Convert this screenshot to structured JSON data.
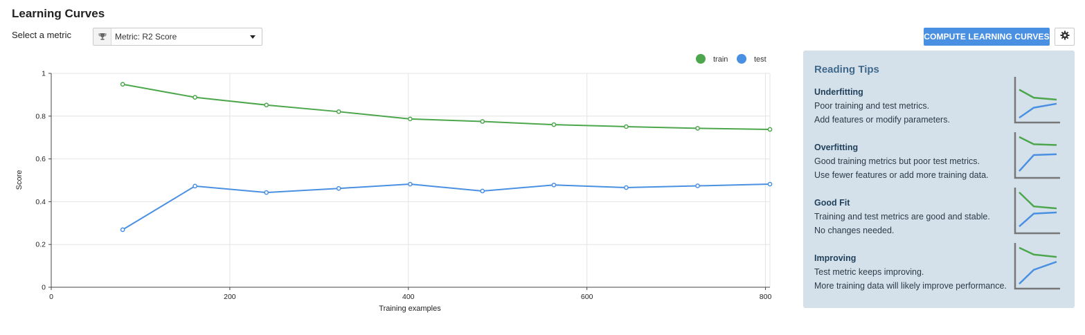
{
  "header": {
    "title": "Learning Curves",
    "metric_label": "Select a metric",
    "metric_value": "Metric: R2 Score",
    "compute_label": "COMPUTE LEARNING CURVES"
  },
  "colors": {
    "train": "#4ca64c",
    "test": "#4a90e2",
    "accent": "#4a90e2",
    "tips_bg": "#d5e1ea"
  },
  "icons": {
    "metric": "trophy-icon",
    "select": "chevron-down-icon",
    "settings": "gear-icon"
  },
  "chart_data": {
    "type": "line",
    "title": "",
    "xlabel": "Training examples",
    "ylabel": "Score",
    "xlim": [
      0,
      805
    ],
    "ylim": [
      0,
      1
    ],
    "xticks": [
      0,
      200,
      400,
      600,
      800
    ],
    "yticks": [
      0,
      0.2,
      0.4,
      0.6,
      0.8,
      1
    ],
    "ytick_labels": [
      "0",
      "0.2",
      "0.4",
      "0.6",
      "0.8",
      "1"
    ],
    "grid": true,
    "legend": "top-right",
    "x": [
      80,
      161,
      241,
      322,
      402,
      483,
      563,
      644,
      724,
      805
    ],
    "series": [
      {
        "name": "train",
        "color": "#4ca64c",
        "values": [
          0.949,
          0.888,
          0.852,
          0.821,
          0.787,
          0.775,
          0.76,
          0.751,
          0.743,
          0.738
        ]
      },
      {
        "name": "test",
        "color": "#4a90e2",
        "values": [
          0.269,
          0.473,
          0.443,
          0.462,
          0.482,
          0.45,
          0.478,
          0.466,
          0.474,
          0.482
        ]
      }
    ]
  },
  "tips": {
    "title": "Reading Tips",
    "items": [
      {
        "heading": "Underfitting",
        "lines": [
          "Poor training and test metrics.",
          "Add features or modify parameters."
        ],
        "graph": {
          "train": [
            0.75,
            0.55,
            0.5
          ],
          "test": [
            0.05,
            0.3,
            0.4
          ]
        }
      },
      {
        "heading": "Overfitting",
        "lines": [
          "Good training metrics but poor test metrics.",
          "Use fewer features or add more training data."
        ],
        "graph": {
          "train": [
            0.95,
            0.77,
            0.75
          ],
          "test": [
            0.1,
            0.5,
            0.52
          ]
        }
      },
      {
        "heading": "Good Fit",
        "lines": [
          "Training and test metrics are good and stable.",
          "No changes needed."
        ],
        "graph": {
          "train": [
            0.95,
            0.6,
            0.55
          ],
          "test": [
            0.1,
            0.42,
            0.45
          ]
        }
      },
      {
        "heading": "Improving",
        "lines": [
          "Test metric keeps improving.",
          "More training data will likely improve performance."
        ],
        "graph": {
          "train": [
            0.95,
            0.78,
            0.72
          ],
          "test": [
            0.05,
            0.4,
            0.6
          ]
        }
      }
    ]
  }
}
